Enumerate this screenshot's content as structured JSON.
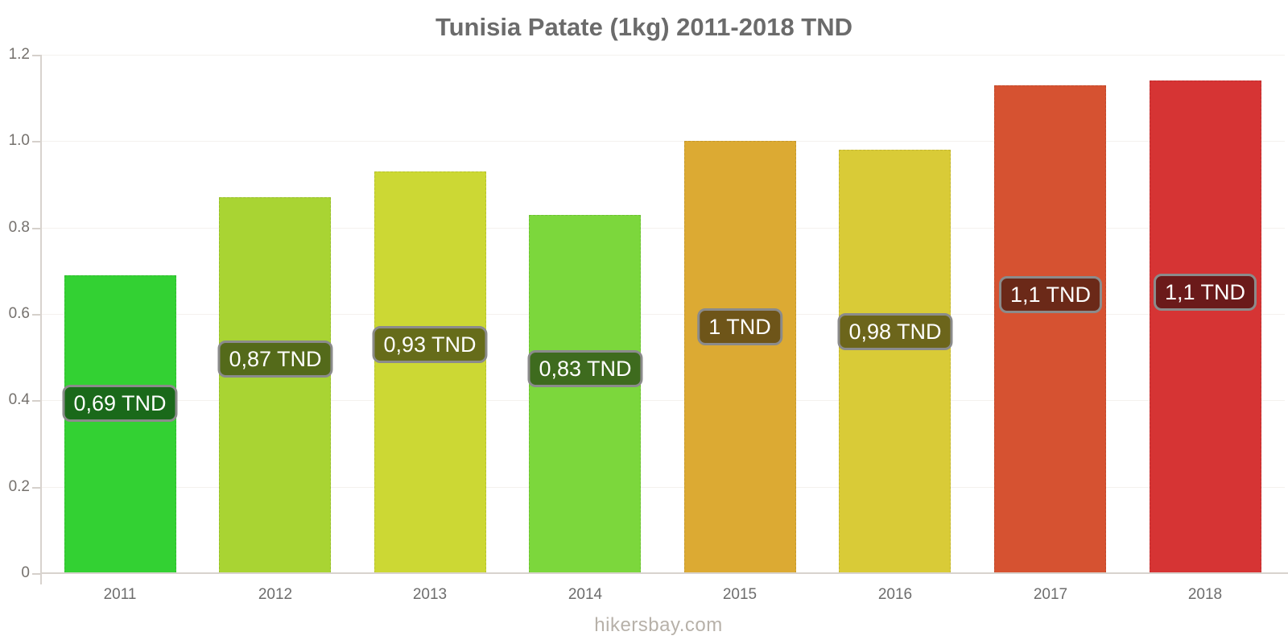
{
  "title": "Tunisia Patate (1kg) 2011-2018 TND",
  "watermark": "hikersbay.com",
  "chart_data": {
    "type": "bar",
    "title": "Tunisia Patate (1kg) 2011-2018 TND",
    "xlabel": "",
    "ylabel": "",
    "categories": [
      "2011",
      "2012",
      "2013",
      "2014",
      "2015",
      "2016",
      "2017",
      "2018"
    ],
    "values": [
      0.69,
      0.87,
      0.93,
      0.83,
      1.0,
      0.98,
      1.13,
      1.14
    ],
    "bar_labels": [
      "0,69 TND",
      "0,87 TND",
      "0,93 TND",
      "0,83 TND",
      "1 TND",
      "0,98 TND",
      "1,1 TND",
      "1,1 TND"
    ],
    "bar_colors": [
      "#33d133",
      "#a9d433",
      "#ccd834",
      "#7cd73c",
      "#dcaa33",
      "#d9cb37",
      "#d65231",
      "#d63434"
    ],
    "label_bg_colors": [
      "#1a691a",
      "#546a1a",
      "#666c1a",
      "#3e6b1e",
      "#6e5519",
      "#6c651b",
      "#6b2918",
      "#6b1a1a"
    ],
    "label_border_color": "#8b8b8b",
    "label_text_color": "#ffffff",
    "ylim": [
      0,
      1.2
    ],
    "yticks": [
      "0",
      "0.2",
      "0.4",
      "0.6",
      "0.8",
      "1.0",
      "1.2"
    ],
    "grid": true,
    "legend": "none",
    "axis_color": "#d8d3ce",
    "grid_color": "#f4f1ee",
    "unit": "TND"
  }
}
